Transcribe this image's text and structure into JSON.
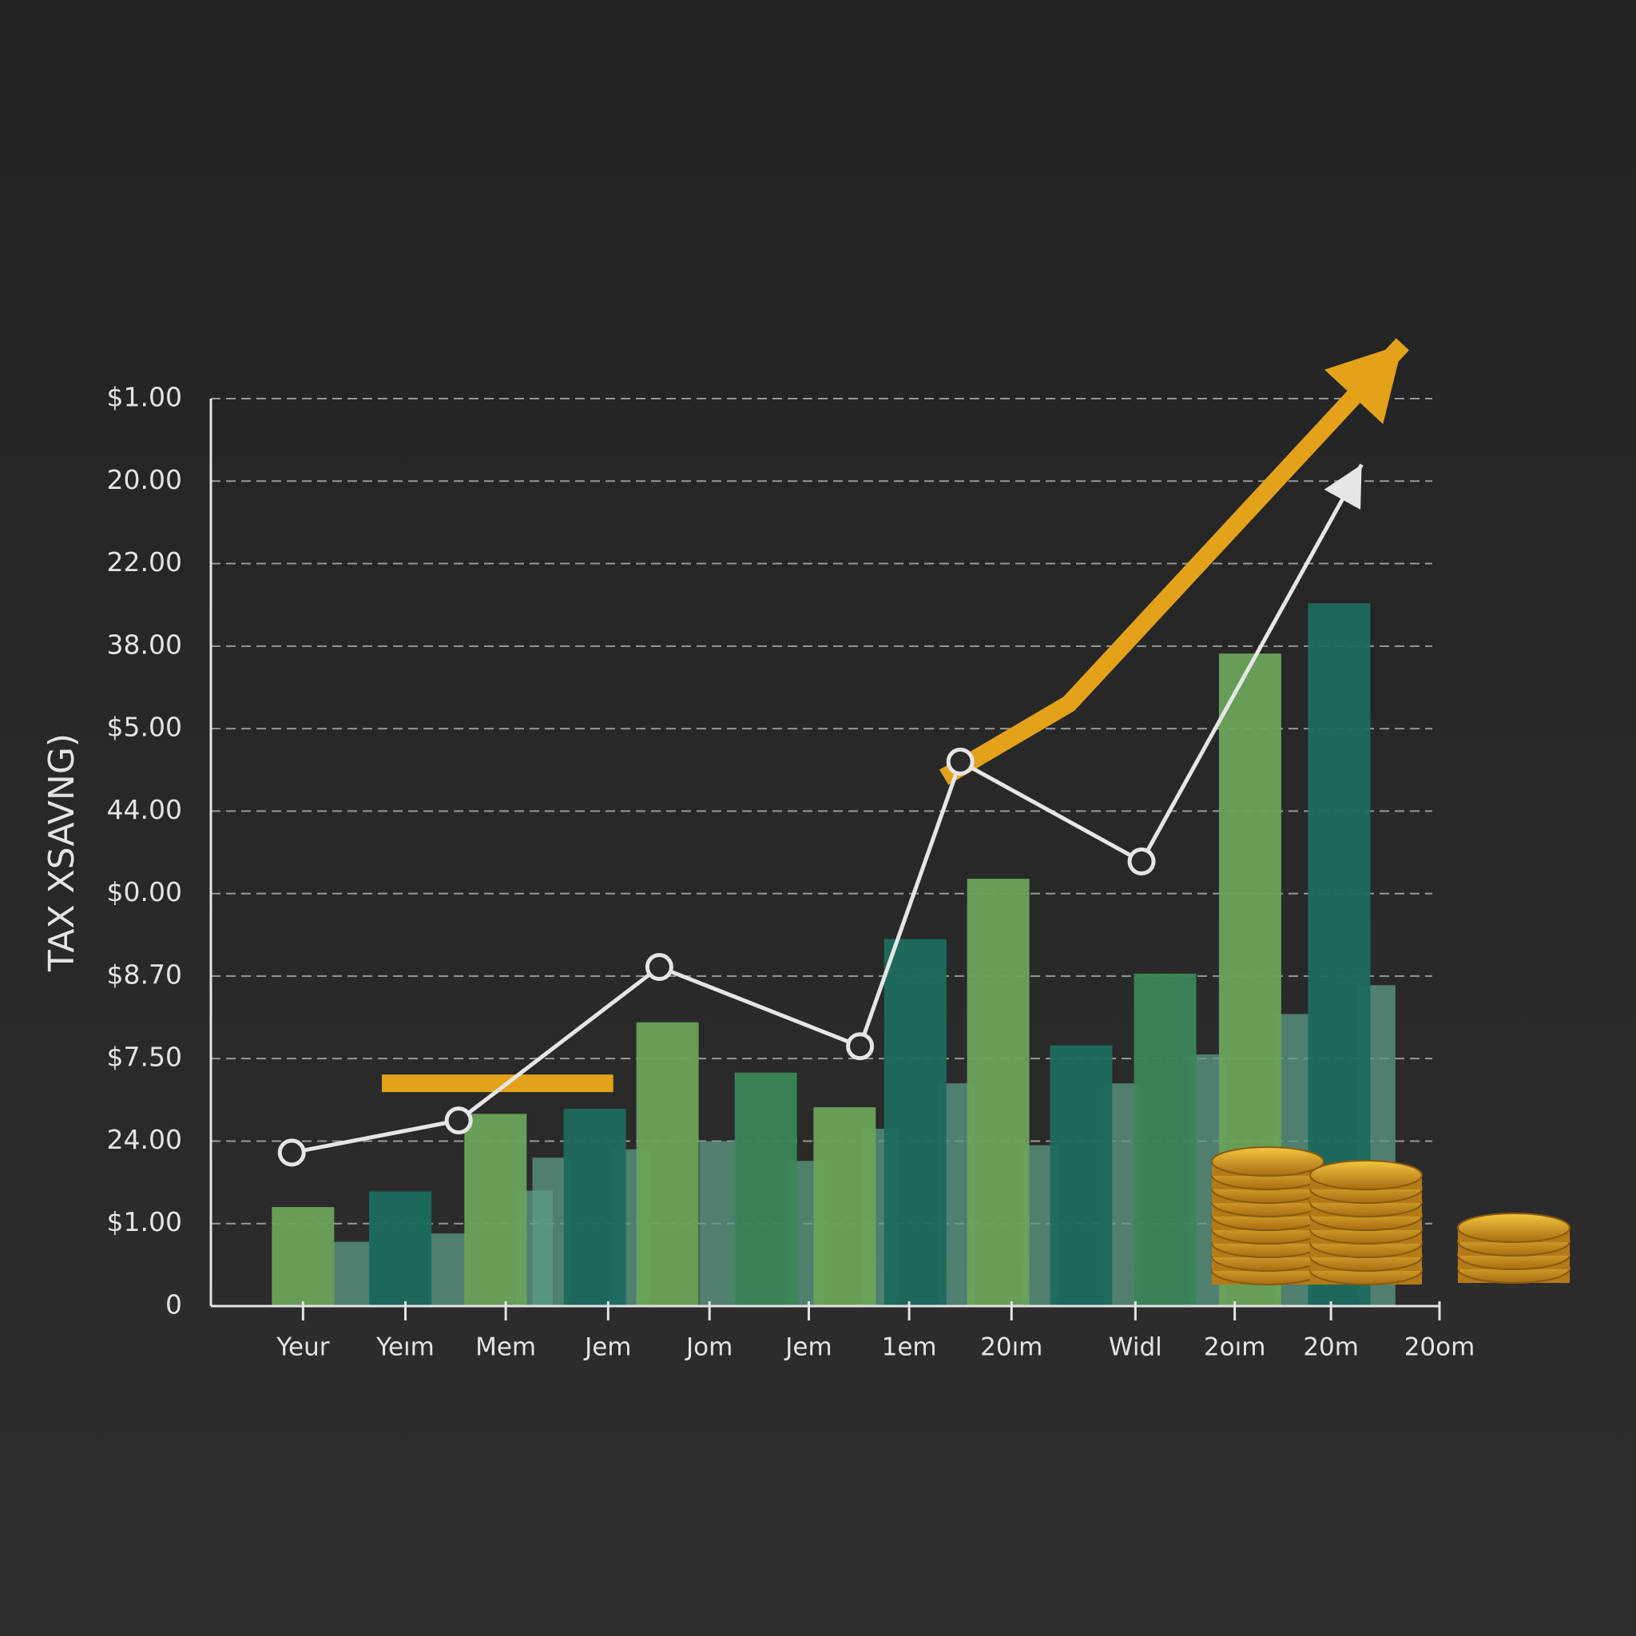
{
  "chart_data": {
    "type": "bar",
    "ylabel": "TAX XSAVNG)",
    "xlim": [
      0,
      12
    ],
    "ylim": [
      0,
      11
    ],
    "grid": true,
    "xticks": [
      {
        "value": 0.9,
        "label": "Yeur"
      },
      {
        "value": 1.9,
        "label": "Yeım"
      },
      {
        "value": 2.88,
        "label": "Mem"
      },
      {
        "value": 3.88,
        "label": "Jem"
      },
      {
        "value": 4.87,
        "label": "Jom"
      },
      {
        "value": 5.84,
        "label": "Jem"
      },
      {
        "value": 6.82,
        "label": "1em"
      },
      {
        "value": 7.82,
        "label": "20ım"
      },
      {
        "value": 9.03,
        "label": "Widl"
      },
      {
        "value": 10.0,
        "label": "2oım"
      },
      {
        "value": 10.94,
        "label": "20m"
      },
      {
        "value": 12,
        "label": "20om"
      }
    ],
    "yticks": [
      {
        "value": 0,
        "label": "0"
      },
      {
        "value": 1,
        "label": "$1.00"
      },
      {
        "value": 2,
        "label": "24.00"
      },
      {
        "value": 3,
        "label": "$7.50"
      },
      {
        "value": 4,
        "label": "$8.70"
      },
      {
        "value": 5,
        "label": "$0.00"
      },
      {
        "value": 6,
        "label": "44.00"
      },
      {
        "value": 7,
        "label": "$5.00"
      },
      {
        "value": 8,
        "label": "38.00"
      },
      {
        "value": 9,
        "label": "22.00"
      },
      {
        "value": 10,
        "label": "20.00"
      },
      {
        "value": 11,
        "label": "$1.00"
      }
    ],
    "series": [
      {
        "type": "bar",
        "color": "#5e9c87",
        "x": [
          1.38,
          2.32,
          3.16,
          3.32,
          4.1,
          4.95,
          5.81,
          6.53,
          7.28,
          8.09,
          8.9,
          9.73,
          10.57,
          11.39
        ],
        "values": [
          0.78,
          0.88,
          1.4,
          1.8,
          1.9,
          2.0,
          1.76,
          2.15,
          2.7,
          1.95,
          2.7,
          3.05,
          3.54,
          3.89
        ]
      },
      {
        "type": "bar",
        "colors": [
          "#6aa35a",
          "#1c6b5e",
          "#6aa35a",
          "#1c6b5e",
          "#6aa35a",
          "#3a8656",
          "#6aa35a",
          "#1c6b5e",
          "#6aa35a",
          "#1c6b5e",
          "#3a8656",
          "#6aa35a",
          "#1c6b5e"
        ],
        "x": [
          0.9,
          1.85,
          2.78,
          3.75,
          4.46,
          5.42,
          6.19,
          6.88,
          7.69,
          8.5,
          9.32,
          10.15,
          11.02
        ],
        "values": [
          1.2,
          1.39,
          2.33,
          2.39,
          3.44,
          2.83,
          2.41,
          4.45,
          5.18,
          3.16,
          4.03,
          7.91,
          8.52
        ]
      },
      {
        "type": "line",
        "color": "#e3a21a",
        "x": [
          1.67,
          3.93
        ],
        "values": [
          2.7,
          2.7
        ]
      },
      {
        "type": "line",
        "color": "#e3a21a",
        "x": [
          7.16,
          8.38,
          11.64
        ],
        "values": [
          6.41,
          7.3,
          11.66
        ],
        "arrow": true
      },
      {
        "type": "line",
        "color": "#e6e6e6",
        "x": [
          0.79,
          2.42,
          4.38,
          6.34,
          7.32,
          9.09,
          11.24
        ],
        "values": [
          1.86,
          2.25,
          4.11,
          3.15,
          6.6,
          5.39,
          10.2
        ],
        "markers": true,
        "arrow": true
      }
    ]
  }
}
